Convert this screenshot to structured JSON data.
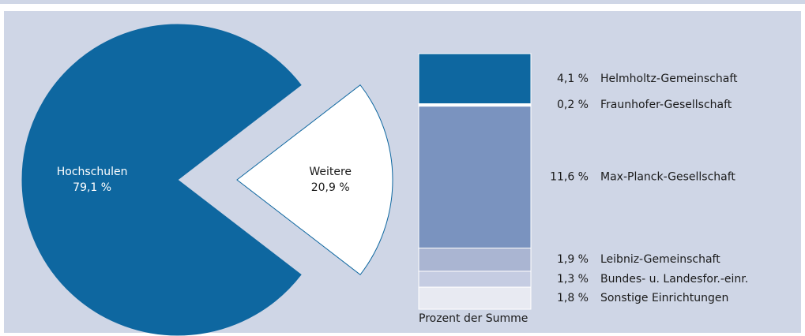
{
  "chart_data": [
    {
      "type": "pie",
      "categories": [
        "Hochschulen",
        "Weitere"
      ],
      "values": [
        79.1,
        20.9
      ],
      "value_labels": [
        "79,1 %",
        "20,9 %"
      ],
      "colors": [
        "#0e67a0",
        "#ffffff"
      ]
    },
    {
      "type": "bar",
      "stacked": true,
      "categories": [
        "Helmholtz-Gemeinschaft",
        "Fraunhofer-Gesellschaft",
        "Max-Planck-Gesellschaft",
        "Leibniz-Gemeinschaft",
        "Bundes- u. Landesfor.-einr.",
        "Sonstige Einrichtungen"
      ],
      "values": [
        4.1,
        0.2,
        11.6,
        1.9,
        1.3,
        1.8
      ],
      "value_labels": [
        "4,1 %",
        "0,2 %",
        "11,6 %",
        "1,9 %",
        "1,3 %",
        "1,8 %"
      ],
      "colors": [
        "#0e67a0",
        "#ffffff",
        "#7a93bf",
        "#aab5d2",
        "#c5cce2",
        "#e8eaf2"
      ],
      "xlabel": "Prozent der Summe"
    }
  ]
}
